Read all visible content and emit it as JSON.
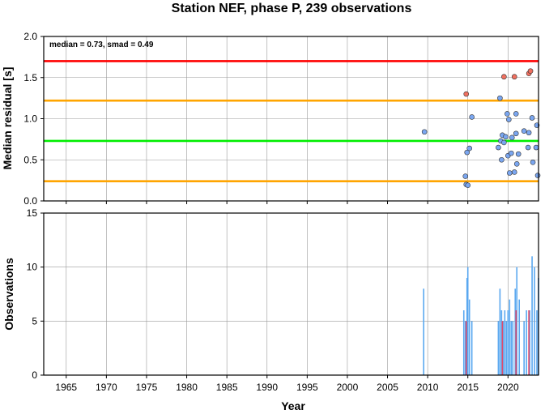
{
  "chart_data": {
    "title": "Station NEF, phase P, 239 observations",
    "xlabel": "Year",
    "xlim": [
      1962.2,
      2023.8
    ],
    "xticks": [
      1965,
      1970,
      1975,
      1980,
      1985,
      1990,
      1995,
      2000,
      2005,
      2010,
      2015,
      2020
    ],
    "grid": true,
    "panels": [
      {
        "type": "scatter",
        "ylabel": "Median residual [s]",
        "ylim": [
          0,
          2.0
        ],
        "yticks": [
          "0.0",
          "0.5",
          "1.0",
          "1.5",
          "2.0"
        ],
        "annotation": "median = 0.73, smad = 0.49",
        "reference_lines": [
          {
            "y": 1.7,
            "color": "#ff0000"
          },
          {
            "y": 1.22,
            "color": "#ffa500"
          },
          {
            "y": 0.73,
            "color": "#00ee00"
          },
          {
            "y": 0.24,
            "color": "#ffa500"
          }
        ],
        "series": [
          {
            "color": "#7aa6f0",
            "points": [
              [
                2009.6,
                0.84
              ],
              [
                2014.7,
                0.3
              ],
              [
                2014.8,
                0.2
              ],
              [
                2015.0,
                0.19
              ],
              [
                2014.9,
                0.59
              ],
              [
                2015.2,
                0.64
              ],
              [
                2015.5,
                1.02
              ],
              [
                2018.8,
                0.65
              ],
              [
                2019.0,
                1.25
              ],
              [
                2019.1,
                0.73
              ],
              [
                2019.2,
                0.5
              ],
              [
                2019.3,
                0.8
              ],
              [
                2019.5,
                0.71
              ],
              [
                2019.7,
                0.78
              ],
              [
                2019.9,
                1.06
              ],
              [
                2020.0,
                0.55
              ],
              [
                2020.1,
                0.99
              ],
              [
                2020.2,
                0.34
              ],
              [
                2020.4,
                0.58
              ],
              [
                2020.5,
                0.77
              ],
              [
                2020.8,
                0.35
              ],
              [
                2021.0,
                0.82
              ],
              [
                2021.1,
                0.45
              ],
              [
                2021.3,
                0.57
              ],
              [
                2021.0,
                1.06
              ],
              [
                2022.0,
                0.85
              ],
              [
                2022.5,
                0.65
              ],
              [
                2022.6,
                0.83
              ],
              [
                2023.0,
                1.01
              ],
              [
                2023.1,
                0.47
              ],
              [
                2023.5,
                0.65
              ],
              [
                2023.6,
                0.92
              ],
              [
                2023.7,
                0.31
              ]
            ]
          },
          {
            "color": "#f07060",
            "points": [
              [
                2014.8,
                1.3
              ],
              [
                2019.5,
                1.51
              ],
              [
                2020.8,
                1.51
              ],
              [
                2022.6,
                1.55
              ],
              [
                2022.8,
                1.58
              ]
            ]
          }
        ]
      },
      {
        "type": "bar",
        "ylabel": "Observations",
        "ylim": [
          0,
          15
        ],
        "yticks": [
          "0",
          "5",
          "10",
          "15"
        ],
        "series": [
          {
            "color": "#5aa8f0",
            "x": [
              2009.5,
              2014.5,
              2014.7,
              2014.9,
              2015.0,
              2015.2,
              2015.5,
              2018.8,
              2019.0,
              2019.2,
              2019.4,
              2019.6,
              2019.8,
              2020.0,
              2020.2,
              2020.4,
              2020.6,
              2020.9,
              2021.1,
              2021.4,
              2022.0,
              2022.3,
              2022.7,
              2023.0,
              2023.3,
              2023.6,
              2023.8
            ],
            "values": [
              8,
              6,
              5,
              9,
              10,
              7,
              5,
              5,
              8,
              6,
              5,
              6,
              5,
              6,
              7,
              5,
              5,
              8,
              10,
              7,
              5,
              6,
              6,
              11,
              10,
              6,
              9
            ]
          },
          {
            "color": "#e04a6a",
            "x": [
              2014.8,
              2019.3,
              2021.0,
              2022.6
            ],
            "values": [
              5,
              5,
              6,
              6
            ]
          }
        ]
      }
    ]
  }
}
